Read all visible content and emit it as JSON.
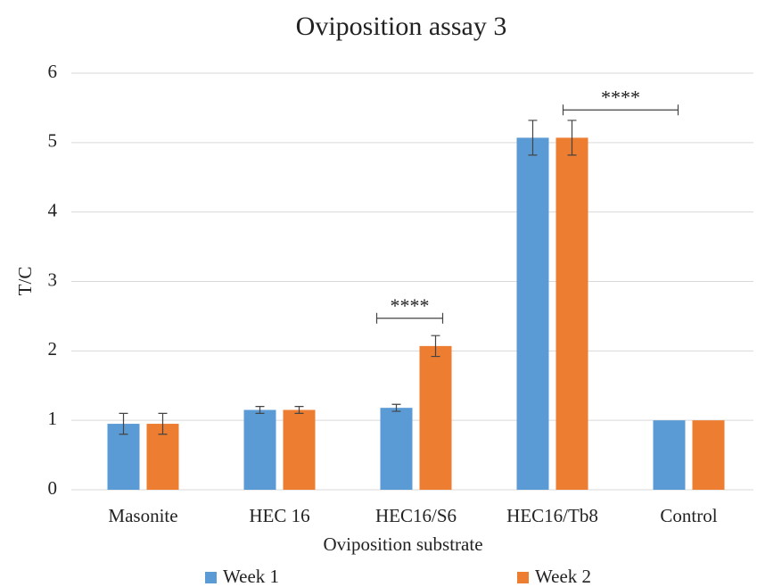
{
  "chart_data": {
    "type": "bar",
    "title": "Oviposition assay 3",
    "xlabel": "Oviposition substrate",
    "ylabel": "T/C",
    "categories": [
      "Masonite",
      "HEC 16",
      "HEC16/S6",
      "HEC16/Tb8",
      "Control"
    ],
    "series": [
      {
        "name": "Week 1",
        "color": "#5b9bd5",
        "values": [
          0.95,
          1.15,
          1.18,
          5.07,
          1.0
        ],
        "errors": [
          0.15,
          0.05,
          0.05,
          0.25,
          0
        ]
      },
      {
        "name": "Week 2",
        "color": "#ed7d31",
        "values": [
          0.95,
          1.15,
          2.07,
          5.07,
          1.0
        ],
        "errors": [
          0.15,
          0.05,
          0.15,
          0.25,
          0
        ]
      }
    ],
    "annotations": [
      "****",
      "****"
    ],
    "ylim": [
      0,
      6
    ],
    "yticks": [
      0,
      1,
      2,
      3,
      4,
      5,
      6
    ],
    "grid": true,
    "legend": "bottom"
  }
}
